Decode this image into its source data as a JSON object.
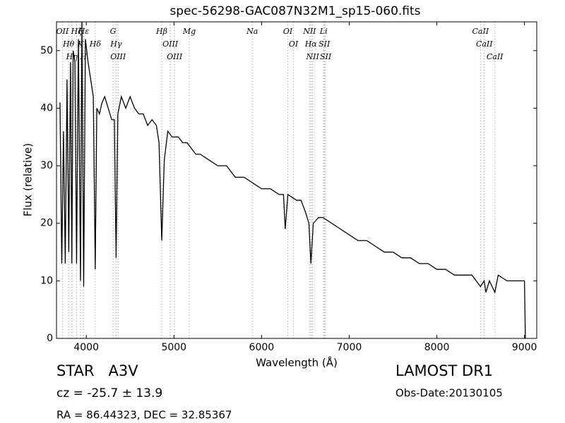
{
  "chart_data": {
    "type": "line",
    "title": "spec-56298-GAC087N32M1_sp15-060.fits",
    "x_label": "Wavelength (Å)",
    "y_label": "Flux (relative)",
    "x": [
      3700,
      3720,
      3740,
      3760,
      3780,
      3800,
      3820,
      3835,
      3850,
      3870,
      3889,
      3910,
      3934,
      3950,
      3970,
      3990,
      4020,
      4050,
      4080,
      4102,
      4120,
      4150,
      4180,
      4210,
      4250,
      4290,
      4320,
      4340,
      4360,
      4400,
      4450,
      4500,
      4550,
      4600,
      4650,
      4700,
      4750,
      4800,
      4830,
      4861,
      4890,
      4930,
      4980,
      5050,
      5100,
      5150,
      5200,
      5250,
      5300,
      5400,
      5500,
      5600,
      5700,
      5800,
      5900,
      6000,
      6100,
      6200,
      6250,
      6270,
      6300,
      6400,
      6450,
      6500,
      6540,
      6563,
      6590,
      6650,
      6700,
      6800,
      6900,
      7000,
      7100,
      7200,
      7300,
      7400,
      7500,
      7600,
      7700,
      7800,
      7900,
      8000,
      8100,
      8200,
      8300,
      8400,
      8498,
      8540,
      8560,
      8600,
      8662,
      8700,
      8800,
      8900,
      9000,
      9010
    ],
    "values": [
      41,
      13,
      36,
      13,
      45,
      15,
      48,
      13,
      50,
      48,
      13,
      52,
      10,
      55,
      9,
      52,
      48,
      45,
      42,
      12,
      40,
      39,
      41,
      42,
      40,
      38,
      38,
      14,
      39,
      42,
      40,
      42,
      40,
      39,
      39,
      37,
      38,
      37,
      34,
      17,
      31,
      36,
      35,
      35,
      34,
      34,
      33,
      32,
      32,
      31,
      30,
      30,
      28,
      28,
      27,
      26,
      26,
      25,
      25,
      19,
      25,
      24,
      24,
      22,
      20,
      13,
      20,
      21,
      21,
      20,
      19,
      18,
      17,
      17,
      16,
      15,
      15,
      14,
      14,
      13,
      13,
      12,
      12,
      11,
      11,
      11,
      9,
      10,
      8,
      10,
      8,
      11,
      10,
      10,
      10,
      0
    ],
    "color": "#000000",
    "xlim": [
      3660,
      9140
    ],
    "ylim": [
      0,
      55
    ],
    "xticks": [
      4000,
      5000,
      6000,
      7000,
      8000,
      9000
    ],
    "yticks": [
      0,
      10,
      20,
      30,
      40,
      50
    ],
    "spectral_lines": {
      "color": "#5cb85c",
      "wavelengths": [
        3727,
        3798,
        3835,
        3889,
        3934,
        3968,
        3970,
        4102,
        4305,
        4340,
        4363,
        4861,
        4959,
        5007,
        5175,
        5894,
        6300,
        6364,
        6548,
        6563,
        6583,
        6708,
        6716,
        6731,
        8498,
        8542,
        8662
      ],
      "labels": [
        "OII",
        "Hθ",
        "Hη",
        "Hζ",
        "K",
        "H",
        "Hε",
        "Hδ",
        "G",
        "Hγ",
        "OIII",
        "Hβ",
        "OIII",
        "OIII",
        "Mg",
        "Na",
        "OI",
        "OI",
        "NII",
        "Hα",
        "NII",
        "Li",
        "SII",
        "SII",
        "CaII",
        "CaII",
        "CaII"
      ]
    },
    "annotations": {
      "class": "STAR   A3V",
      "redshift": "cz = -25.7 ± 13.9",
      "coords": "RA = 86.44323, DEC = 32.85367",
      "survey": "LAMOST DR1",
      "obs_date": "Obs-Date:20130105"
    }
  }
}
